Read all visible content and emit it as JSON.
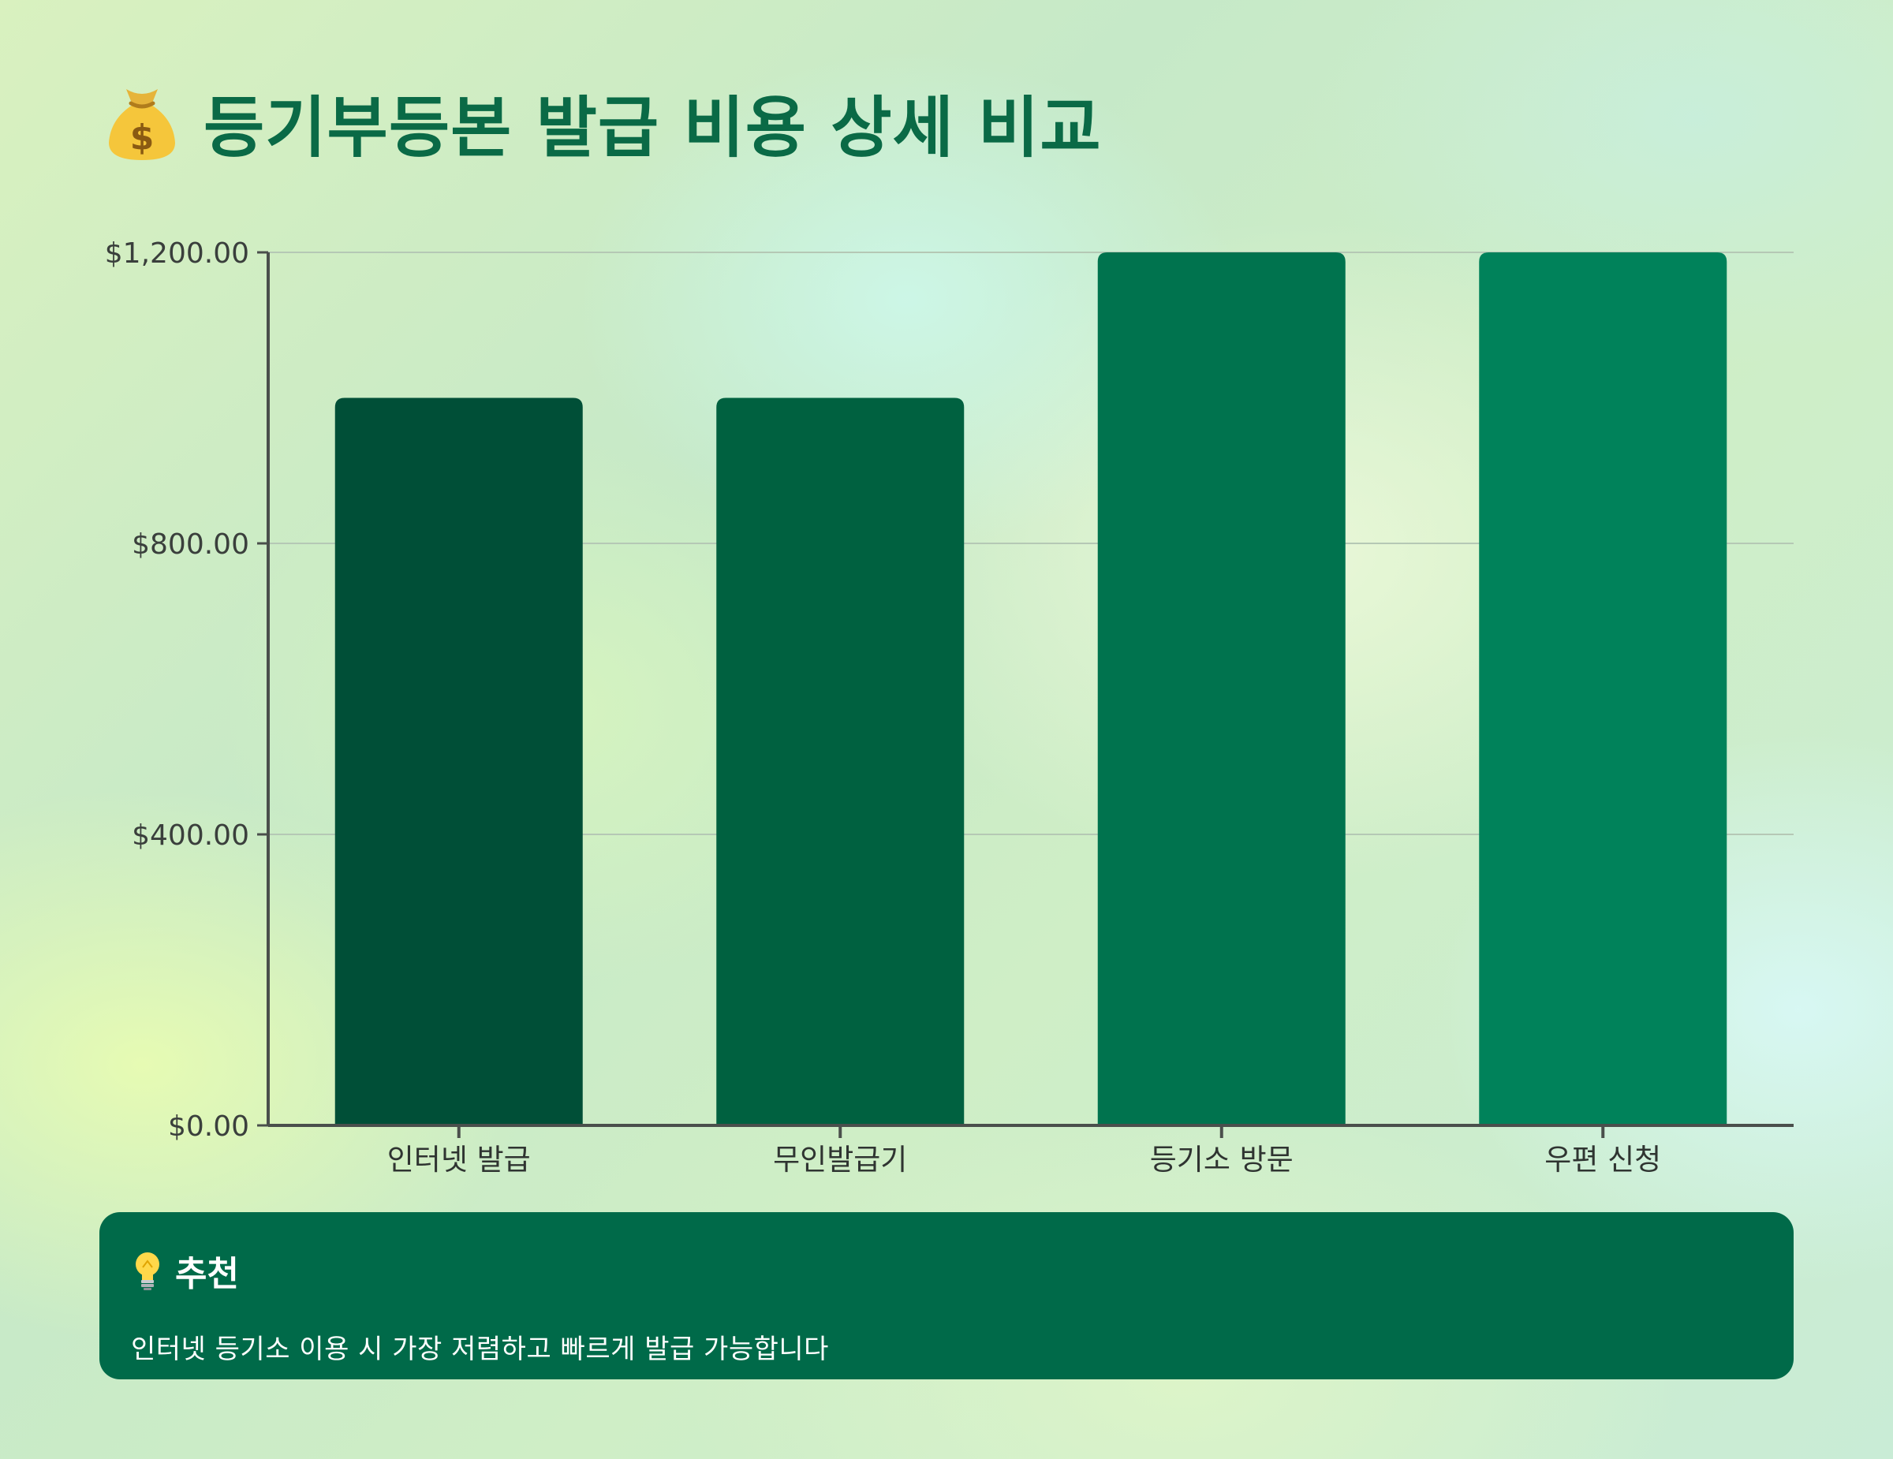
{
  "header": {
    "title": "등기부등본 발급 비용 상세 비교",
    "icon": "money-bag-icon"
  },
  "chart_data": {
    "type": "bar",
    "title": "등기부등본 발급 비용 상세 비교",
    "categories": [
      "인터넷 발급",
      "무인발급기",
      "등기소 방문",
      "우편 신청"
    ],
    "values": [
      1000,
      1000,
      1200,
      1200
    ],
    "bar_colors": [
      "#004f37",
      "#006140",
      "#00734e",
      "#00825a"
    ],
    "ylim": [
      0,
      1200
    ],
    "y_ticks": [
      0,
      400,
      800,
      1200
    ],
    "y_tick_labels": [
      "$0.00",
      "$400.00",
      "$800.00",
      "$1,200.00"
    ],
    "xlabel": "",
    "ylabel": "",
    "grid": true,
    "legend": "none"
  },
  "recommendation": {
    "icon": "lightbulb-icon",
    "title": "추천",
    "text": "인터넷 등기소 이용 시 가장 저렴하고 빠르게 발급 가능합니다",
    "background": "#006a49"
  },
  "colors": {
    "title": "#0a6a46",
    "axis": "#4a4f4c",
    "grid": "#b5c8b5"
  }
}
